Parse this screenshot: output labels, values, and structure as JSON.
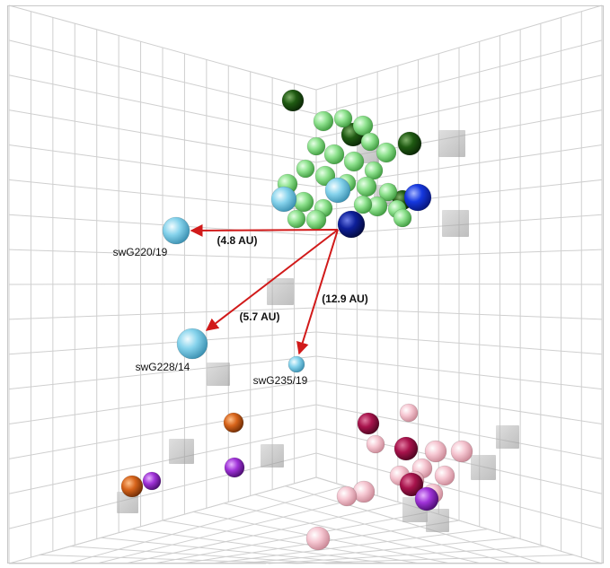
{
  "viewer": {
    "annotations": [
      {
        "id": "swG220",
        "text": "swG220/19"
      },
      {
        "id": "swG228",
        "text": "swG228/14"
      },
      {
        "id": "swG235",
        "text": "swG235/19"
      }
    ],
    "distances": [
      {
        "id": "d1",
        "text": "(4.8 AU)"
      },
      {
        "id": "d2",
        "text": "(5.7 AU)"
      },
      {
        "id": "d3",
        "text": "(12.9 AU)"
      }
    ],
    "colors": {
      "light_green": "#8ee28e",
      "dark_green": "#1f5a12",
      "light_blue": "#86d3ec",
      "navy": "#0d1f9a",
      "blue": "#1538e0",
      "pink": "#f6c7d2",
      "maroon": "#a8134c",
      "orange": "#d7641b",
      "purple": "#a033d8",
      "gray_cube": "#9a9a9a",
      "arrow": "#d11a1a",
      "grid": "#c9c9c9"
    }
  }
}
